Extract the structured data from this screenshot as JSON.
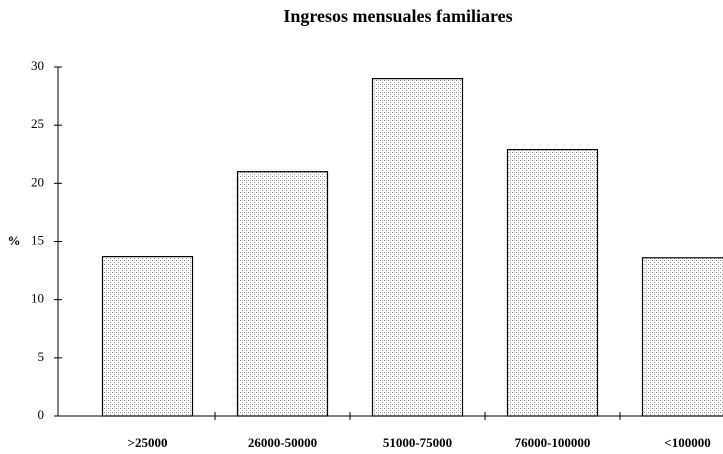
{
  "chart_data": {
    "type": "bar",
    "title": "Ingresos mensuales familiares",
    "y_label": "%",
    "categories": [
      ">25000",
      "26000-50000",
      "51000-75000",
      "76000-100000",
      "<100000"
    ],
    "values": [
      13.7,
      21,
      29,
      22.9,
      13.6
    ],
    "color": "#d9d9d9",
    "ylim": [
      0,
      30
    ],
    "yticks": [
      0,
      5,
      10,
      15,
      20,
      25,
      30
    ],
    "grid": false
  }
}
